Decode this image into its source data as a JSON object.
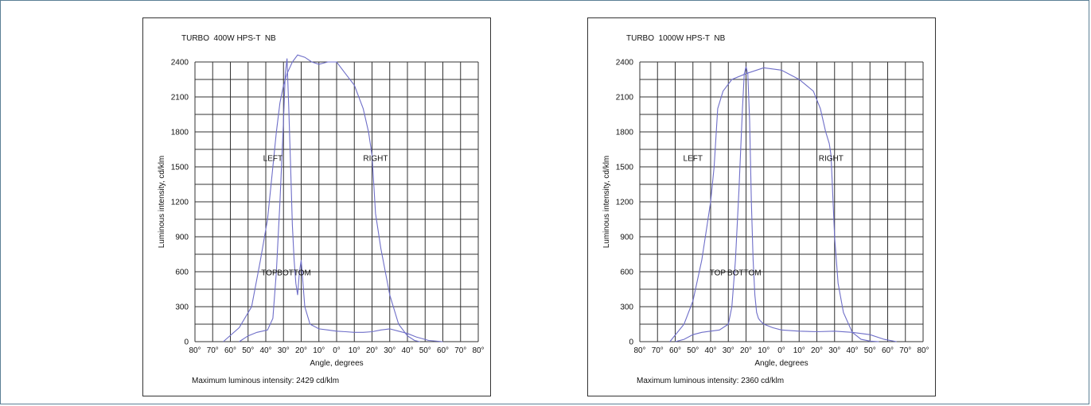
{
  "colors": {
    "curve": "#6e6ec8",
    "grid": "#333333",
    "border": "#5b7f95"
  },
  "chart_data": [
    {
      "type": "line",
      "title": "TURBO  400W HPS-T  NB",
      "xlabel": "Angle, degrees",
      "ylabel": "Luminous intensity, cd/klm",
      "ylim": [
        0,
        2400
      ],
      "xlim": [
        -80,
        80
      ],
      "y_ticks": [
        0,
        300,
        600,
        900,
        1200,
        1500,
        1800,
        2100,
        2400
      ],
      "x_tick_labels": [
        "80°",
        "70°",
        "60°",
        "50°",
        "40°",
        "30°",
        "20°",
        "10°",
        "0°",
        "10°",
        "20°",
        "30°",
        "40°",
        "50°",
        "60°",
        "70°",
        "80°"
      ],
      "x_ticks": [
        -80,
        -70,
        -60,
        -50,
        -40,
        -30,
        -20,
        -10,
        0,
        10,
        20,
        30,
        40,
        50,
        60,
        70,
        80
      ],
      "grid": true,
      "series": [
        {
          "name": "LEFT / RIGHT",
          "x": [
            -64,
            -55,
            -48,
            -43,
            -39,
            -36,
            -34,
            -32,
            -30,
            -28,
            -25,
            -22,
            -18,
            -14,
            -10,
            -5,
            0,
            5,
            10,
            15,
            18,
            20,
            22,
            25,
            30,
            35,
            40,
            44,
            47
          ],
          "y": [
            0,
            120,
            300,
            700,
            1050,
            1500,
            1800,
            2050,
            2200,
            2300,
            2400,
            2460,
            2440,
            2400,
            2380,
            2400,
            2400,
            2300,
            2200,
            2000,
            1800,
            1600,
            1100,
            800,
            400,
            150,
            50,
            10,
            0
          ]
        },
        {
          "name": "TOP / BOTTOM",
          "x": [
            -55,
            -50,
            -45,
            -42,
            -39,
            -36,
            -34,
            -32,
            -30,
            -29,
            -28,
            -27,
            -26,
            -25,
            -24,
            -23,
            -22,
            -21,
            -20,
            -18,
            -15,
            -10,
            -5,
            0,
            5,
            10,
            15,
            20,
            25,
            30,
            35,
            40,
            45,
            52,
            60
          ],
          "y": [
            0,
            50,
            80,
            90,
            100,
            200,
            600,
            1200,
            1900,
            2300,
            2430,
            2000,
            1500,
            1000,
            700,
            500,
            400,
            600,
            700,
            300,
            150,
            110,
            100,
            90,
            85,
            80,
            80,
            85,
            100,
            110,
            90,
            70,
            40,
            10,
            0
          ]
        }
      ],
      "labels": {
        "left": "LEFT",
        "right": "RIGHT",
        "top": "TOP",
        "bottom": "BOTTOM"
      },
      "footnote": "Maximum luminous intensity: 2429 cd/klm"
    },
    {
      "type": "line",
      "title": "TURBO  1000W HPS-T  NB",
      "xlabel": "Angle, degrees",
      "ylabel": "Luminous intensity, cd/klm",
      "ylim": [
        0,
        2400
      ],
      "xlim": [
        -80,
        80
      ],
      "y_ticks": [
        0,
        300,
        600,
        900,
        1200,
        1500,
        1800,
        2100,
        2400
      ],
      "x_tick_labels": [
        "80°",
        "70°",
        "60°",
        "50°",
        "40°",
        "30°",
        "20°",
        "10°",
        "0°",
        "10°",
        "20°",
        "30°",
        "40°",
        "50°",
        "60°",
        "70°",
        "80°"
      ],
      "x_ticks": [
        -80,
        -70,
        -60,
        -50,
        -40,
        -30,
        -20,
        -10,
        0,
        10,
        20,
        30,
        40,
        50,
        60,
        70,
        80
      ],
      "grid": true,
      "series": [
        {
          "name": "LEFT / RIGHT",
          "x": [
            -63,
            -55,
            -50,
            -45,
            -42,
            -40,
            -38,
            -36,
            -33,
            -28,
            -20,
            -10,
            0,
            10,
            18,
            22,
            25,
            27,
            28,
            30,
            32,
            35,
            40,
            45,
            50,
            55
          ],
          "y": [
            0,
            150,
            350,
            700,
            1000,
            1200,
            1500,
            2000,
            2150,
            2250,
            2300,
            2350,
            2330,
            2250,
            2150,
            2000,
            1800,
            1700,
            1600,
            900,
            500,
            250,
            80,
            20,
            5,
            0
          ]
        },
        {
          "name": "TOP / BOTTOM",
          "x": [
            -60,
            -55,
            -50,
            -45,
            -40,
            -35,
            -30,
            -28,
            -26,
            -24,
            -22,
            -21,
            -20,
            -19,
            -18,
            -17,
            -16,
            -15,
            -14,
            -13,
            -12,
            -10,
            -5,
            0,
            10,
            20,
            30,
            40,
            50,
            58,
            65
          ],
          "y": [
            0,
            20,
            60,
            80,
            90,
            100,
            150,
            300,
            700,
            1300,
            2000,
            2300,
            2360,
            2300,
            1900,
            1200,
            700,
            400,
            250,
            200,
            180,
            150,
            120,
            100,
            90,
            85,
            90,
            80,
            60,
            20,
            0
          ]
        }
      ],
      "labels": {
        "left": "LEFT",
        "right": "RIGHT",
        "top": "TOP",
        "bottom": "BOTTOM"
      },
      "footnote": "Maximum luminous intensity: 2360 cd/klm"
    }
  ]
}
